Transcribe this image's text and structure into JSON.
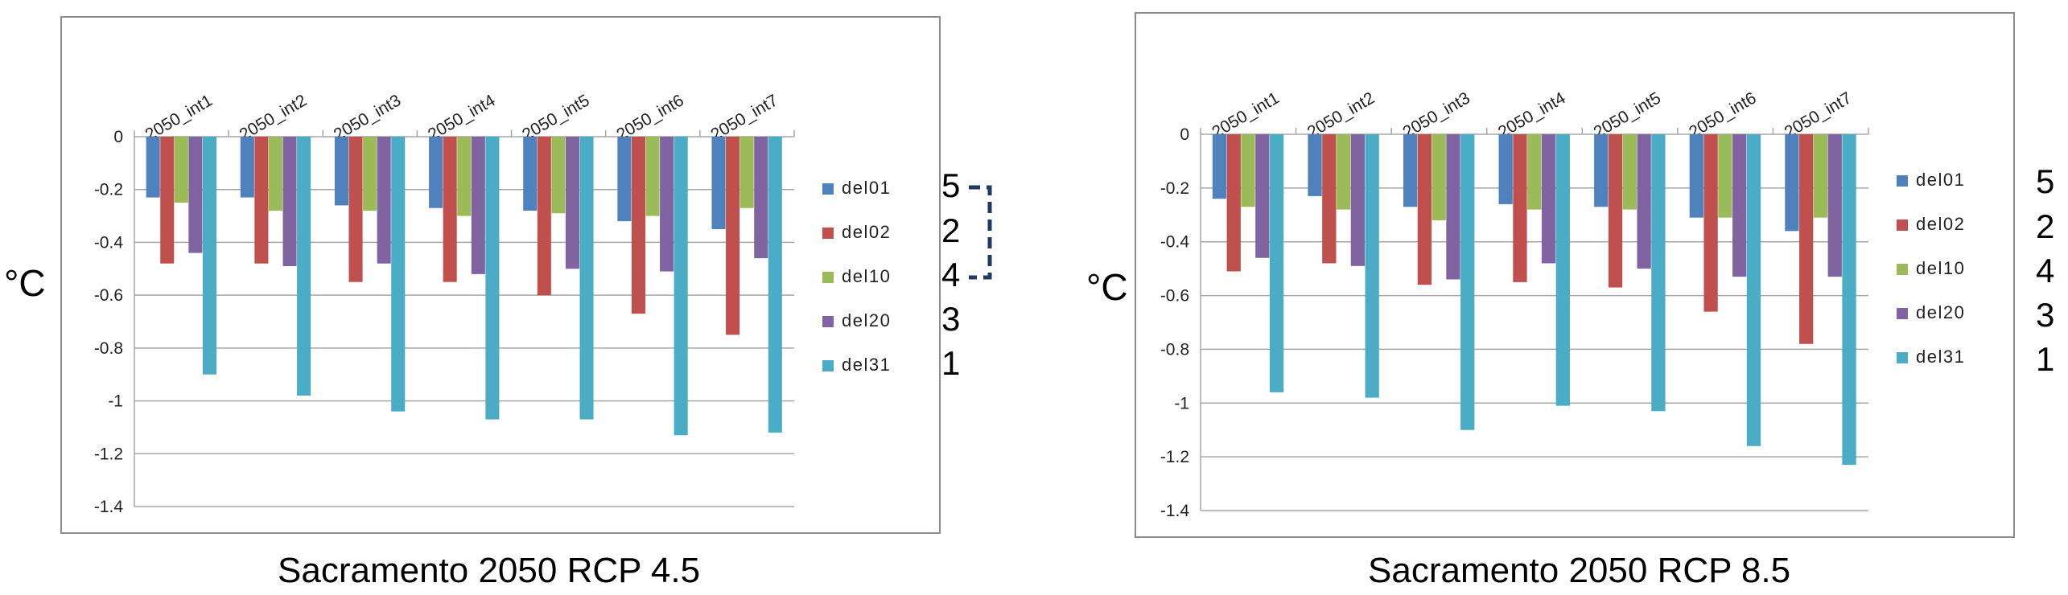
{
  "figures": [
    {
      "unit": "°C",
      "caption": "Sacramento 2050 RCP 4.5",
      "ranks": [
        "5",
        "2",
        "4",
        "3",
        "1"
      ]
    },
    {
      "unit": "°C",
      "caption": "Sacramento 2050 RCP 8.5",
      "ranks": [
        "5",
        "2",
        "4",
        "3",
        "1"
      ]
    }
  ],
  "chart_data": [
    {
      "type": "bar",
      "title": "Sacramento 2050 RCP 4.5",
      "ylabel": "°C",
      "xlabel": "",
      "categories": [
        "2050_int1",
        "2050_int2",
        "2050_int3",
        "2050_int4",
        "2050_int5",
        "2050_int6",
        "2050_int7"
      ],
      "ylim": [
        -1.4,
        0
      ],
      "yticks": [
        0,
        -0.2,
        -0.4,
        -0.6,
        -0.8,
        -1,
        -1.2,
        -1.4
      ],
      "ytick_labels": [
        "0",
        "-0.2",
        "-0.4",
        "-0.6",
        "-0.8",
        "-1",
        "-1.2",
        "-1.4"
      ],
      "grid": true,
      "legend_position": "right",
      "series": [
        {
          "name": "del01",
          "color": "#4f81bd",
          "values": [
            -0.23,
            -0.23,
            -0.26,
            -0.27,
            -0.28,
            -0.32,
            -0.35
          ]
        },
        {
          "name": "del02",
          "color": "#c0504d",
          "values": [
            -0.48,
            -0.48,
            -0.55,
            -0.55,
            -0.6,
            -0.67,
            -0.75
          ]
        },
        {
          "name": "del10",
          "color": "#9bbb59",
          "values": [
            -0.25,
            -0.28,
            -0.28,
            -0.3,
            -0.29,
            -0.3,
            -0.27
          ]
        },
        {
          "name": "del20",
          "color": "#8064a2",
          "values": [
            -0.44,
            -0.49,
            -0.48,
            -0.52,
            -0.5,
            -0.51,
            -0.46
          ]
        },
        {
          "name": "del31",
          "color": "#4bacc6",
          "values": [
            -0.9,
            -0.98,
            -1.04,
            -1.07,
            -1.07,
            -1.13,
            -1.12
          ]
        }
      ]
    },
    {
      "type": "bar",
      "title": "Sacramento 2050 RCP 8.5",
      "ylabel": "°C",
      "xlabel": "",
      "categories": [
        "2050_int1",
        "2050_int2",
        "2050_int3",
        "2050_int4",
        "2050_int5",
        "2050_int6",
        "2050_int7"
      ],
      "ylim": [
        -1.4,
        0
      ],
      "yticks": [
        0,
        -0.2,
        -0.4,
        -0.6,
        -0.8,
        -1,
        -1.2,
        -1.4
      ],
      "ytick_labels": [
        "0",
        "-0.2",
        "-0.4",
        "-0.6",
        "-0.8",
        "-1",
        "-1.2",
        "-1.4"
      ],
      "grid": true,
      "legend_position": "right",
      "series": [
        {
          "name": "del01",
          "color": "#4f81bd",
          "values": [
            -0.24,
            -0.23,
            -0.27,
            -0.26,
            -0.27,
            -0.31,
            -0.36
          ]
        },
        {
          "name": "del02",
          "color": "#c0504d",
          "values": [
            -0.51,
            -0.48,
            -0.56,
            -0.55,
            -0.57,
            -0.66,
            -0.78
          ]
        },
        {
          "name": "del10",
          "color": "#9bbb59",
          "values": [
            -0.27,
            -0.28,
            -0.32,
            -0.28,
            -0.28,
            -0.31,
            -0.31
          ]
        },
        {
          "name": "del20",
          "color": "#8064a2",
          "values": [
            -0.46,
            -0.49,
            -0.54,
            -0.48,
            -0.5,
            -0.53,
            -0.53
          ]
        },
        {
          "name": "del31",
          "color": "#4bacc6",
          "values": [
            -0.96,
            -0.98,
            -1.1,
            -1.01,
            -1.03,
            -1.16,
            -1.23
          ]
        }
      ]
    }
  ]
}
